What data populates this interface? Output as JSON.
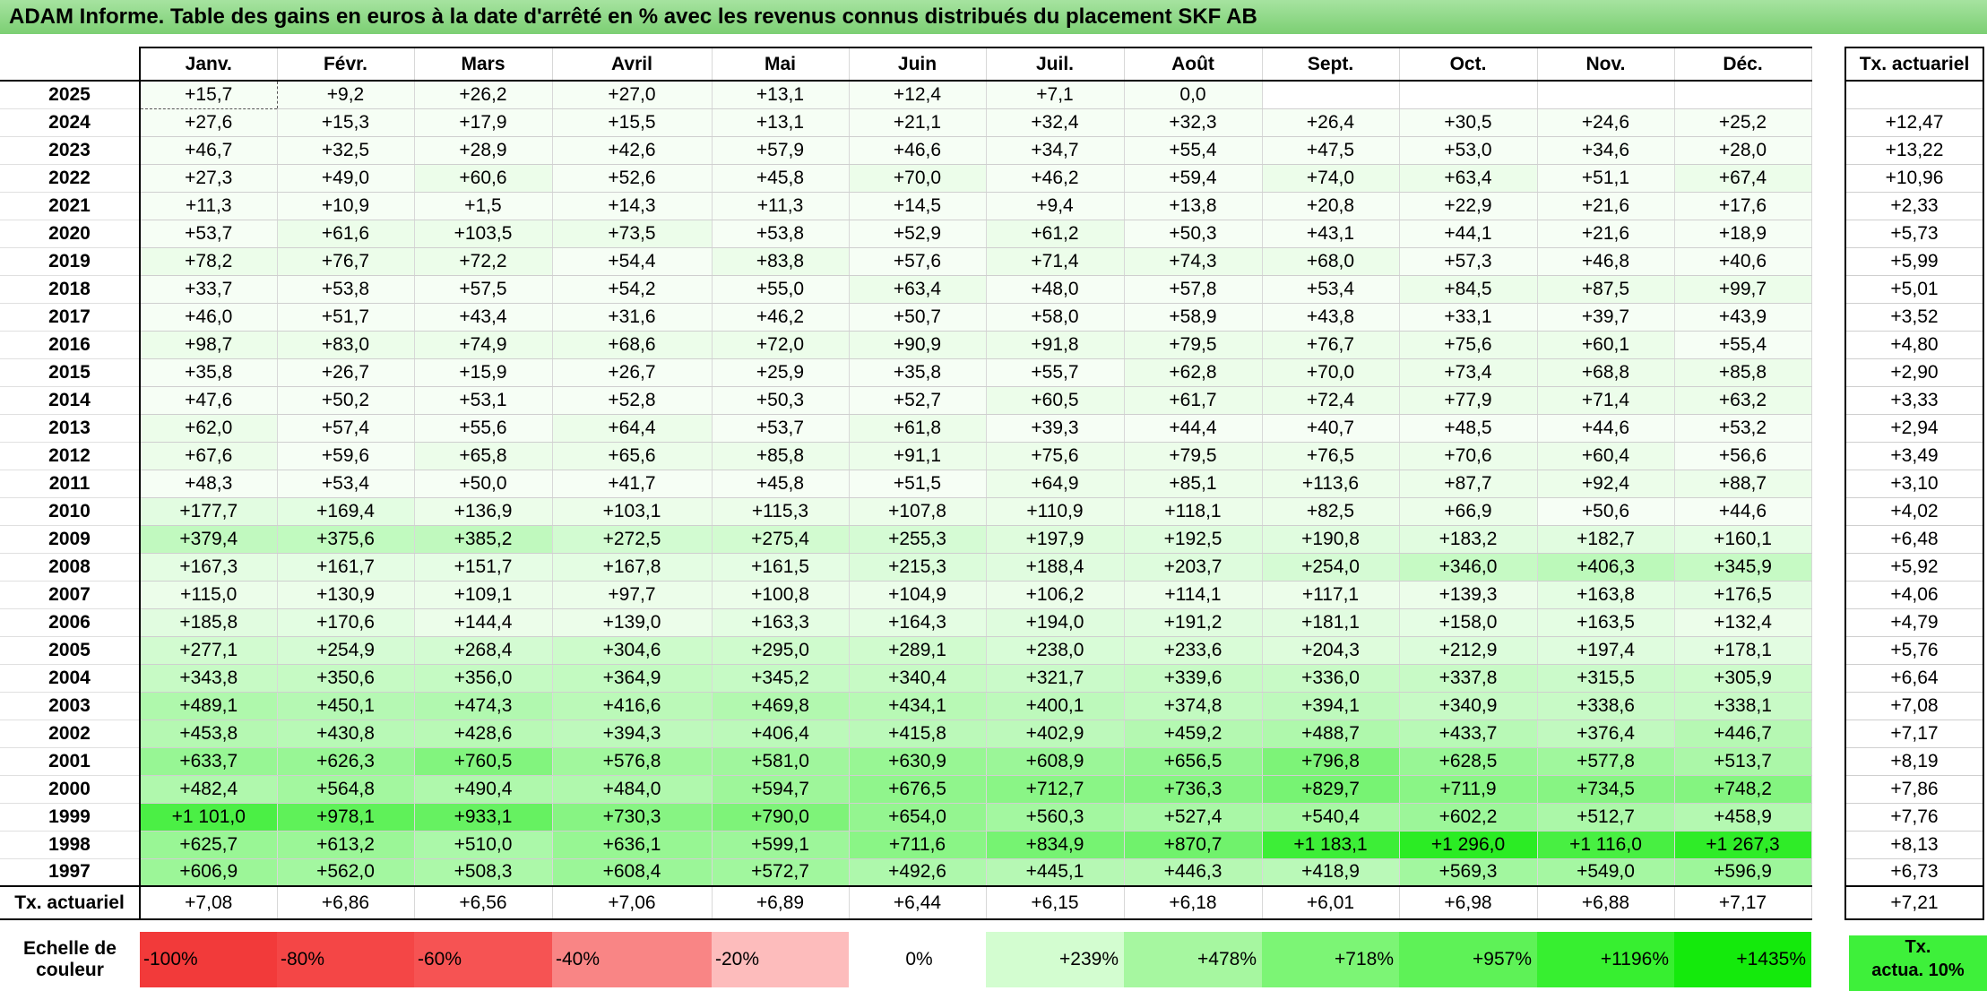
{
  "title": "ADAM Informe. Table des gains en euros à la date d'arrêté en % avec les revenus connus distribués du placement SKF AB",
  "months": [
    "Janv.",
    "Févr.",
    "Mars",
    "Avril",
    "Mai",
    "Juin",
    "Juil.",
    "Août",
    "Sept.",
    "Oct.",
    "Nov.",
    "Déc."
  ],
  "tx_header": "Tx. actuariel",
  "rows": [
    {
      "year": "2025",
      "values": [
        "+15,7",
        "+9,2",
        "+26,2",
        "+27,0",
        "+13,1",
        "+12,4",
        "+7,1",
        "0,0",
        "",
        "",
        "",
        ""
      ],
      "tx": ""
    },
    {
      "year": "2024",
      "values": [
        "+27,6",
        "+15,3",
        "+17,9",
        "+15,5",
        "+13,1",
        "+21,1",
        "+32,4",
        "+32,3",
        "+26,4",
        "+30,5",
        "+24,6",
        "+25,2"
      ],
      "tx": "+12,47"
    },
    {
      "year": "2023",
      "values": [
        "+46,7",
        "+32,5",
        "+28,9",
        "+42,6",
        "+57,9",
        "+46,6",
        "+34,7",
        "+55,4",
        "+47,5",
        "+53,0",
        "+34,6",
        "+28,0"
      ],
      "tx": "+13,22"
    },
    {
      "year": "2022",
      "values": [
        "+27,3",
        "+49,0",
        "+60,6",
        "+52,6",
        "+45,8",
        "+70,0",
        "+46,2",
        "+59,4",
        "+74,0",
        "+63,4",
        "+51,1",
        "+67,4"
      ],
      "tx": "+10,96"
    },
    {
      "year": "2021",
      "values": [
        "+11,3",
        "+10,9",
        "+1,5",
        "+14,3",
        "+11,3",
        "+14,5",
        "+9,4",
        "+13,8",
        "+20,8",
        "+22,9",
        "+21,6",
        "+17,6"
      ],
      "tx": "+2,33"
    },
    {
      "year": "2020",
      "values": [
        "+53,7",
        "+61,6",
        "+103,5",
        "+73,5",
        "+53,8",
        "+52,9",
        "+61,2",
        "+50,3",
        "+43,1",
        "+44,1",
        "+21,6",
        "+18,9"
      ],
      "tx": "+5,73"
    },
    {
      "year": "2019",
      "values": [
        "+78,2",
        "+76,7",
        "+72,2",
        "+54,4",
        "+83,8",
        "+57,6",
        "+71,4",
        "+74,3",
        "+68,0",
        "+57,3",
        "+46,8",
        "+40,6"
      ],
      "tx": "+5,99"
    },
    {
      "year": "2018",
      "values": [
        "+33,7",
        "+53,8",
        "+57,5",
        "+54,2",
        "+55,0",
        "+63,4",
        "+48,0",
        "+57,8",
        "+53,4",
        "+84,5",
        "+87,5",
        "+99,7"
      ],
      "tx": "+5,01"
    },
    {
      "year": "2017",
      "values": [
        "+46,0",
        "+51,7",
        "+43,4",
        "+31,6",
        "+46,2",
        "+50,7",
        "+58,0",
        "+58,9",
        "+43,8",
        "+33,1",
        "+39,7",
        "+43,9"
      ],
      "tx": "+3,52"
    },
    {
      "year": "2016",
      "values": [
        "+98,7",
        "+83,0",
        "+74,9",
        "+68,6",
        "+72,0",
        "+90,9",
        "+91,8",
        "+79,5",
        "+76,7",
        "+75,6",
        "+60,1",
        "+55,4"
      ],
      "tx": "+4,80"
    },
    {
      "year": "2015",
      "values": [
        "+35,8",
        "+26,7",
        "+15,9",
        "+26,7",
        "+25,9",
        "+35,8",
        "+55,7",
        "+62,8",
        "+70,0",
        "+73,4",
        "+68,8",
        "+85,8"
      ],
      "tx": "+2,90"
    },
    {
      "year": "2014",
      "values": [
        "+47,6",
        "+50,2",
        "+53,1",
        "+52,8",
        "+50,3",
        "+52,7",
        "+60,5",
        "+61,7",
        "+72,4",
        "+77,9",
        "+71,4",
        "+63,2"
      ],
      "tx": "+3,33"
    },
    {
      "year": "2013",
      "values": [
        "+62,0",
        "+57,4",
        "+55,6",
        "+64,4",
        "+53,7",
        "+61,8",
        "+39,3",
        "+44,4",
        "+40,7",
        "+48,5",
        "+44,6",
        "+53,2"
      ],
      "tx": "+2,94"
    },
    {
      "year": "2012",
      "values": [
        "+67,6",
        "+59,6",
        "+65,8",
        "+65,6",
        "+85,8",
        "+91,1",
        "+75,6",
        "+79,5",
        "+76,5",
        "+70,6",
        "+60,4",
        "+56,6"
      ],
      "tx": "+3,49"
    },
    {
      "year": "2011",
      "values": [
        "+48,3",
        "+53,4",
        "+50,0",
        "+41,7",
        "+45,8",
        "+51,5",
        "+64,9",
        "+85,1",
        "+113,6",
        "+87,7",
        "+92,4",
        "+88,7"
      ],
      "tx": "+3,10"
    },
    {
      "year": "2010",
      "values": [
        "+177,7",
        "+169,4",
        "+136,9",
        "+103,1",
        "+115,3",
        "+107,8",
        "+110,9",
        "+118,1",
        "+82,5",
        "+66,9",
        "+50,6",
        "+44,6"
      ],
      "tx": "+4,02"
    },
    {
      "year": "2009",
      "values": [
        "+379,4",
        "+375,6",
        "+385,2",
        "+272,5",
        "+275,4",
        "+255,3",
        "+197,9",
        "+192,5",
        "+190,8",
        "+183,2",
        "+182,7",
        "+160,1"
      ],
      "tx": "+6,48"
    },
    {
      "year": "2008",
      "values": [
        "+167,3",
        "+161,7",
        "+151,7",
        "+167,8",
        "+161,5",
        "+215,3",
        "+188,4",
        "+203,7",
        "+254,0",
        "+346,0",
        "+406,3",
        "+345,9"
      ],
      "tx": "+5,92"
    },
    {
      "year": "2007",
      "values": [
        "+115,0",
        "+130,9",
        "+109,1",
        "+97,7",
        "+100,8",
        "+104,9",
        "+106,2",
        "+114,1",
        "+117,1",
        "+139,3",
        "+163,8",
        "+176,5"
      ],
      "tx": "+4,06"
    },
    {
      "year": "2006",
      "values": [
        "+185,8",
        "+170,6",
        "+144,4",
        "+139,0",
        "+163,3",
        "+164,3",
        "+194,0",
        "+191,2",
        "+181,1",
        "+158,0",
        "+163,5",
        "+132,4"
      ],
      "tx": "+4,79"
    },
    {
      "year": "2005",
      "values": [
        "+277,1",
        "+254,9",
        "+268,4",
        "+304,6",
        "+295,0",
        "+289,1",
        "+238,0",
        "+233,6",
        "+204,3",
        "+212,9",
        "+197,4",
        "+178,1"
      ],
      "tx": "+5,76"
    },
    {
      "year": "2004",
      "values": [
        "+343,8",
        "+350,6",
        "+356,0",
        "+364,9",
        "+345,2",
        "+340,4",
        "+321,7",
        "+339,6",
        "+336,0",
        "+337,8",
        "+315,5",
        "+305,9"
      ],
      "tx": "+6,64"
    },
    {
      "year": "2003",
      "values": [
        "+489,1",
        "+450,1",
        "+474,3",
        "+416,6",
        "+469,8",
        "+434,1",
        "+400,1",
        "+374,8",
        "+394,1",
        "+340,9",
        "+338,6",
        "+338,1"
      ],
      "tx": "+7,08"
    },
    {
      "year": "2002",
      "values": [
        "+453,8",
        "+430,8",
        "+428,6",
        "+394,3",
        "+406,4",
        "+415,8",
        "+402,9",
        "+459,2",
        "+488,7",
        "+433,7",
        "+376,4",
        "+446,7"
      ],
      "tx": "+7,17"
    },
    {
      "year": "2001",
      "values": [
        "+633,7",
        "+626,3",
        "+760,5",
        "+576,8",
        "+581,0",
        "+630,9",
        "+608,9",
        "+656,5",
        "+796,8",
        "+628,5",
        "+577,8",
        "+513,7"
      ],
      "tx": "+8,19"
    },
    {
      "year": "2000",
      "values": [
        "+482,4",
        "+564,8",
        "+490,4",
        "+484,0",
        "+594,7",
        "+676,5",
        "+712,7",
        "+736,3",
        "+829,7",
        "+711,9",
        "+734,5",
        "+748,2"
      ],
      "tx": "+7,86"
    },
    {
      "year": "1999",
      "values": [
        "+1 101,0",
        "+978,1",
        "+933,1",
        "+730,3",
        "+790,0",
        "+654,0",
        "+560,3",
        "+527,4",
        "+540,4",
        "+602,2",
        "+512,7",
        "+458,9"
      ],
      "tx": "+7,76"
    },
    {
      "year": "1998",
      "values": [
        "+625,7",
        "+613,2",
        "+510,0",
        "+636,1",
        "+599,1",
        "+711,6",
        "+834,9",
        "+870,7",
        "+1 183,1",
        "+1 296,0",
        "+1 116,0",
        "+1 267,3"
      ],
      "tx": "+8,13"
    },
    {
      "year": "1997",
      "values": [
        "+606,9",
        "+562,0",
        "+508,3",
        "+608,4",
        "+572,7",
        "+492,6",
        "+445,1",
        "+446,3",
        "+418,9",
        "+569,3",
        "+549,0",
        "+596,9"
      ],
      "tx": "+6,73"
    }
  ],
  "footer": {
    "label": "Tx. actuariel",
    "values": [
      "+7,08",
      "+6,86",
      "+6,56",
      "+7,06",
      "+6,89",
      "+6,44",
      "+6,15",
      "+6,18",
      "+6,01",
      "+6,98",
      "+6,88",
      "+7,17"
    ],
    "tx": "+7,21"
  },
  "scale": {
    "label_line1": "Echelle de",
    "label_line2": "couleur",
    "cells": [
      {
        "label": "-100%",
        "color": "#f23a3a"
      },
      {
        "label": "-80%",
        "color": "#f44646"
      },
      {
        "label": "-60%",
        "color": "#f65353"
      },
      {
        "label": "-40%",
        "color": "#f98585"
      },
      {
        "label": "-20%",
        "color": "#fdbcbc"
      },
      {
        "label": "0%",
        "color": "#ffffff"
      },
      {
        "label": "+239%",
        "color": "#d3fdd0"
      },
      {
        "label": "+478%",
        "color": "#a6f7a0"
      },
      {
        "label": "+718%",
        "color": "#7cf575"
      },
      {
        "label": "+957%",
        "color": "#5ef257"
      },
      {
        "label": "+1196%",
        "color": "#37ef30"
      },
      {
        "label": "+1435%",
        "color": "#14ea0c"
      }
    ],
    "tx_line1": "Tx.",
    "tx_line2": "actua. 10%",
    "tx_color": "#3ef03a"
  }
}
